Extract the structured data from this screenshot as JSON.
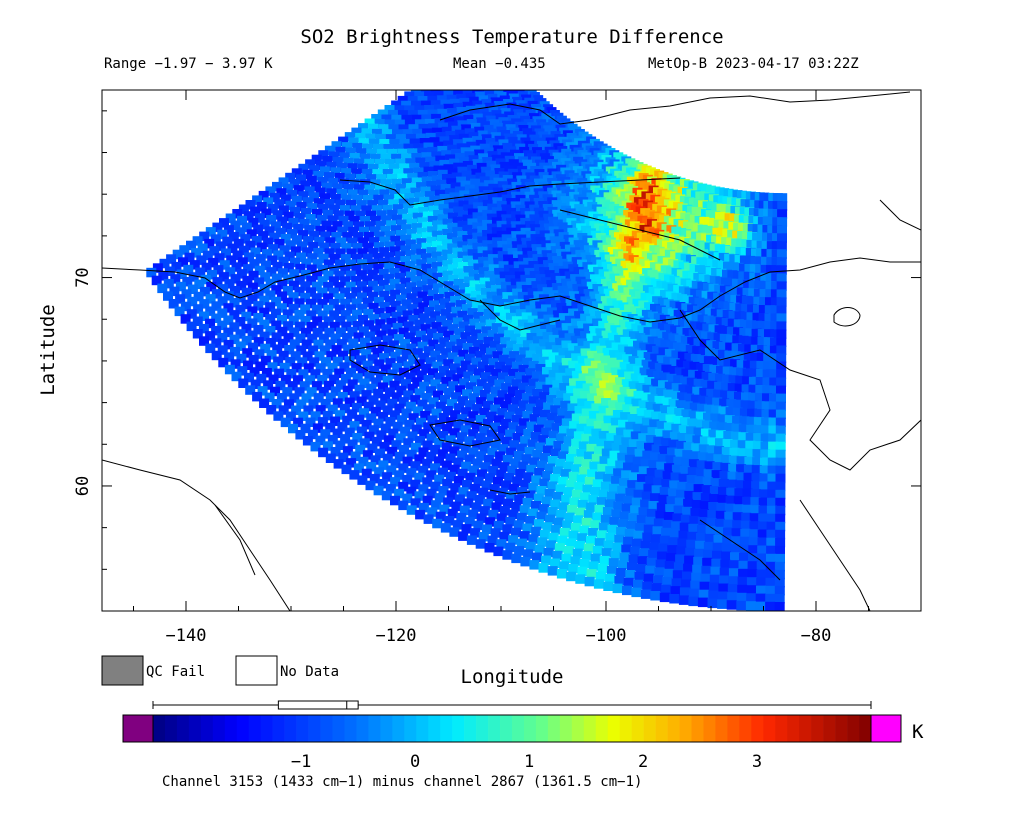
{
  "header": {
    "title": "SO2 Brightness Temperature Difference",
    "range_text": "Range −1.97 − 3.97 K",
    "mean_text": "Mean −0.435",
    "satellite_time": "MetOp-B 2023-04-17 03:22Z"
  },
  "legend": {
    "qc_fail_label": "QC Fail",
    "no_data_label": "No Data",
    "qc_fail_color": "#808080",
    "no_data_color": "#ffffff"
  },
  "colorbar": {
    "unit": "K",
    "ticks": [
      "−1",
      "0",
      "1",
      "2",
      "3"
    ],
    "tick_values": [
      -1,
      0,
      1,
      2,
      3
    ],
    "min": -2.3,
    "max": 4.0,
    "under_color": "#800080",
    "over_color": "#ff00ff",
    "box_stats": {
      "low": -1.2,
      "q1": -0.9,
      "median": -0.6,
      "q3": -0.5,
      "high": 3.97,
      "whisker_low": -2.0
    },
    "footnote": "Channel 3153 (1433 cm−1) minus channel 2867 (1361.5 cm−1)"
  },
  "chart_data": {
    "type": "heatmap",
    "title": "SO2 Brightness Temperature Difference",
    "xlabel": "Longitude",
    "ylabel": "Latitude",
    "xlim": [
      -148,
      -70
    ],
    "ylim": [
      54,
      79
    ],
    "x_ticks": [
      -140,
      -120,
      -100,
      -80
    ],
    "y_ticks": [
      60,
      70
    ],
    "value_range": [
      -1.97,
      3.97
    ],
    "mean": -0.435,
    "colormap": "rainbow (blue → cyan → green → yellow → red)",
    "swath": {
      "center_lon": -83,
      "center_lat": 91,
      "inner_radius_deg": 17,
      "outer_radius_deg": 37,
      "azimuth_span_deg": [
        -56,
        0
      ]
    },
    "features": [
      {
        "name": "background",
        "value": -0.9
      },
      {
        "name": "diagonal_band",
        "value": 0.4
      },
      {
        "name": "high_arctic_region",
        "lon_lat": [
          -95,
          73
        ],
        "value": 1.6
      },
      {
        "name": "hot_spot",
        "lon_lat": [
          -88,
          72.3
        ],
        "value": 3.8
      }
    ]
  }
}
